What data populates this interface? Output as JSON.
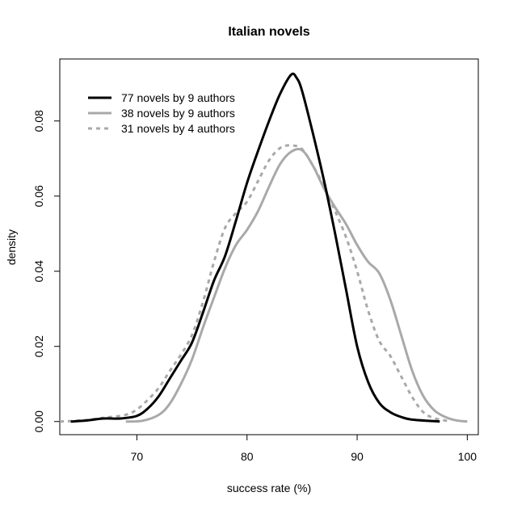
{
  "chart_data": {
    "type": "line",
    "title": "Italian novels",
    "xlabel": "success rate (%)",
    "ylabel": "density",
    "xlim": [
      63,
      101
    ],
    "ylim": [
      -0.0035,
      0.0965
    ],
    "xticks": [
      70,
      80,
      90,
      100
    ],
    "yticks": [
      0.0,
      0.02,
      0.04,
      0.06,
      0.08
    ],
    "xtick_labels": [
      "70",
      "80",
      "90",
      "100"
    ],
    "ytick_labels": [
      "0.00",
      "0.02",
      "0.04",
      "0.06",
      "0.08"
    ],
    "legend_position": "top-left",
    "grid": false,
    "series": [
      {
        "name": "77 novels by 9 authors",
        "color": "#000000",
        "dash": "solid",
        "points": [
          [
            64.0,
            0.0
          ],
          [
            65.5,
            0.0003
          ],
          [
            67.0,
            0.0008
          ],
          [
            68.5,
            0.0008
          ],
          [
            70.0,
            0.0015
          ],
          [
            71.0,
            0.0035
          ],
          [
            72.0,
            0.0068
          ],
          [
            73.0,
            0.0115
          ],
          [
            74.0,
            0.0162
          ],
          [
            75.0,
            0.021
          ],
          [
            76.0,
            0.029
          ],
          [
            77.0,
            0.0375
          ],
          [
            78.0,
            0.044
          ],
          [
            79.0,
            0.0535
          ],
          [
            80.0,
            0.0635
          ],
          [
            81.0,
            0.072
          ],
          [
            82.0,
            0.08
          ],
          [
            83.0,
            0.0872
          ],
          [
            84.0,
            0.0923
          ],
          [
            84.5,
            0.0915
          ],
          [
            85.0,
            0.088
          ],
          [
            86.0,
            0.0765
          ],
          [
            87.0,
            0.064
          ],
          [
            88.0,
            0.05
          ],
          [
            89.0,
            0.035
          ],
          [
            90.0,
            0.02
          ],
          [
            91.0,
            0.0105
          ],
          [
            92.0,
            0.005
          ],
          [
            93.0,
            0.0025
          ],
          [
            94.0,
            0.0012
          ],
          [
            95.0,
            0.0005
          ],
          [
            97.5,
            0.0
          ]
        ]
      },
      {
        "name": "38 novels by 9 authors",
        "color": "#a9a9a9",
        "dash": "solid",
        "points": [
          [
            69.0,
            0.0
          ],
          [
            70.5,
            0.0002
          ],
          [
            72.0,
            0.0018
          ],
          [
            73.0,
            0.0048
          ],
          [
            74.0,
            0.01
          ],
          [
            75.0,
            0.0165
          ],
          [
            76.0,
            0.025
          ],
          [
            77.0,
            0.033
          ],
          [
            78.0,
            0.0408
          ],
          [
            79.0,
            0.047
          ],
          [
            80.0,
            0.051
          ],
          [
            81.0,
            0.056
          ],
          [
            82.0,
            0.0625
          ],
          [
            83.0,
            0.0685
          ],
          [
            84.0,
            0.0718
          ],
          [
            85.0,
            0.0722
          ],
          [
            86.0,
            0.068
          ],
          [
            87.0,
            0.062
          ],
          [
            88.0,
            0.057
          ],
          [
            89.0,
            0.0525
          ],
          [
            90.0,
            0.047
          ],
          [
            91.0,
            0.0425
          ],
          [
            92.0,
            0.0395
          ],
          [
            93.0,
            0.0325
          ],
          [
            94.0,
            0.023
          ],
          [
            95.0,
            0.0135
          ],
          [
            96.0,
            0.0068
          ],
          [
            97.0,
            0.003
          ],
          [
            98.0,
            0.0012
          ],
          [
            99.0,
            0.0003
          ],
          [
            100.0,
            0.0
          ]
        ]
      },
      {
        "name": "31 novels by 4 authors",
        "color": "#a9a9a9",
        "dash": "dashed",
        "points": [
          [
            63.0,
            0.0
          ],
          [
            65.0,
            0.0003
          ],
          [
            67.0,
            0.001
          ],
          [
            69.0,
            0.0018
          ],
          [
            70.0,
            0.0032
          ],
          [
            71.0,
            0.0058
          ],
          [
            72.0,
            0.009
          ],
          [
            73.0,
            0.0135
          ],
          [
            74.0,
            0.0178
          ],
          [
            75.0,
            0.023
          ],
          [
            76.0,
            0.0318
          ],
          [
            77.0,
            0.0425
          ],
          [
            78.0,
            0.0515
          ],
          [
            79.0,
            0.0555
          ],
          [
            80.0,
            0.0585
          ],
          [
            81.0,
            0.064
          ],
          [
            82.0,
            0.0695
          ],
          [
            83.0,
            0.0728
          ],
          [
            84.0,
            0.0735
          ],
          [
            85.0,
            0.0725
          ],
          [
            86.0,
            0.068
          ],
          [
            87.0,
            0.0625
          ],
          [
            88.0,
            0.056
          ],
          [
            89.0,
            0.049
          ],
          [
            90.0,
            0.04
          ],
          [
            91.0,
            0.0295
          ],
          [
            92.0,
            0.0215
          ],
          [
            93.0,
            0.0175
          ],
          [
            94.0,
            0.012
          ],
          [
            95.0,
            0.0065
          ],
          [
            96.0,
            0.0025
          ],
          [
            97.0,
            0.0009
          ],
          [
            98.5,
            0.0
          ]
        ]
      }
    ]
  }
}
